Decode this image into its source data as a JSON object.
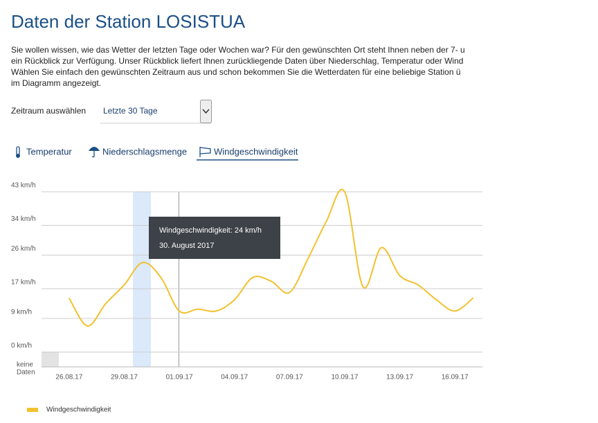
{
  "header": {
    "title": "Daten der Station LOSISTUA"
  },
  "intro": {
    "lines": [
      "Sie wollen wissen, wie das Wetter der letzten Tage oder Wochen war? Für den gewünschten Ort steht Ihnen neben der 7- u",
      "ein Rückblick zur Verfügung. Unser Rückblick liefert Ihnen zurückliegende Daten über Niederschlag, Temperatur oder Wind",
      "Wählen Sie einfach den gewünschten Zeitraum aus und schon bekommen Sie die Wetterdaten für eine beliebige Station ü",
      "im Diagramm angezeigt."
    ]
  },
  "period": {
    "label": "Zeitraum auswählen",
    "selected": "Letzte 30 Tage"
  },
  "tabs": [
    "Temperatur",
    "Niederschlagsmenge",
    "Windgeschwindigkeit"
  ],
  "no_data_label": [
    "keine",
    "Daten"
  ],
  "tooltip": {
    "lines": [
      "Windgeschwindigkeit: 24 km/h",
      "30. August 2017"
    ]
  },
  "chart_data": {
    "type": "line",
    "categories": [
      null,
      "26.08.17",
      null,
      null,
      "29.08.17",
      null,
      null,
      "01.09.17",
      null,
      null,
      "04.09.17",
      null,
      null,
      "07.09.17",
      null,
      null,
      "10.09.17",
      null,
      null,
      "13.09.17",
      null,
      null,
      "16.09.17",
      null
    ],
    "series": [
      {
        "name": "Windgeschwindigkeit",
        "color": "#f2c12e",
        "values": [
          null,
          14.5,
          7,
          13,
          18,
          24,
          20,
          11,
          11.5,
          11,
          14,
          20,
          19,
          16,
          25,
          35,
          43,
          17.5,
          28,
          20.5,
          18,
          14,
          11,
          14.5
        ]
      }
    ],
    "ylim": [
      -4,
      43
    ],
    "yticks": [
      {
        "value": 0,
        "label": "0 km/h"
      },
      {
        "value": 9,
        "label": "9 km/h"
      },
      {
        "value": 17,
        "label": "17 km/h"
      },
      {
        "value": 26,
        "label": "26 km/h"
      },
      {
        "value": 34,
        "label": "34 km/h"
      },
      {
        "value": 43,
        "label": "43 km/h"
      }
    ],
    "grid": true
  }
}
